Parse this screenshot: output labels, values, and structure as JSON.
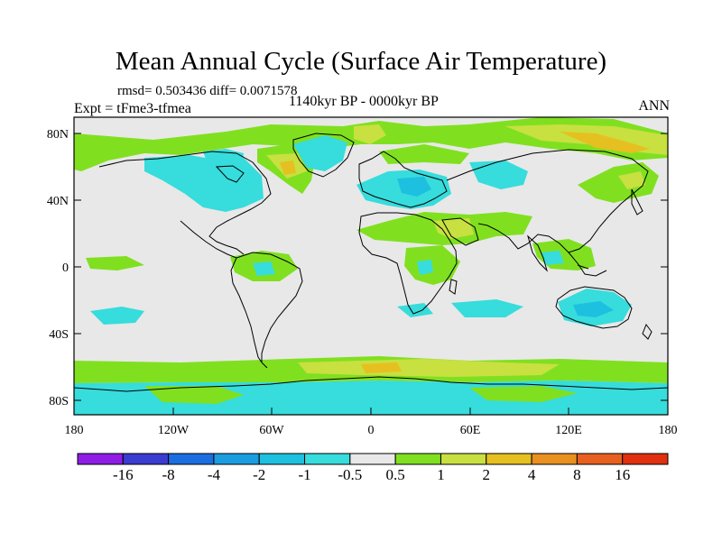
{
  "title": "Mean Annual Cycle (Surface Air Temperature)",
  "stats": "rmsd= 0.503436 diff= 0.0071578",
  "experiment": "Expt = tFme3-tfmea",
  "period": "1140kyr BP - 0000kyr BP",
  "season": "ANN",
  "lat_labels": [
    "80N",
    "40N",
    "0",
    "40S",
    "80S"
  ],
  "lon_labels": [
    "180",
    "120W",
    "60W",
    "0",
    "60E",
    "120E",
    "180"
  ],
  "colorbar": {
    "labels": [
      "-16",
      "-8",
      "-4",
      "-2",
      "-1",
      "-0.5",
      "0.5",
      "1",
      "2",
      "4",
      "8",
      "16"
    ],
    "colors": [
      "#8f1de6",
      "#3b3cd0",
      "#1a6ee0",
      "#1c9ce0",
      "#1ec0e0",
      "#37dcdc",
      "#e8e8e8",
      "#80e020",
      "#c8e040",
      "#e6c020",
      "#e89020",
      "#e86020",
      "#e03010"
    ]
  }
}
